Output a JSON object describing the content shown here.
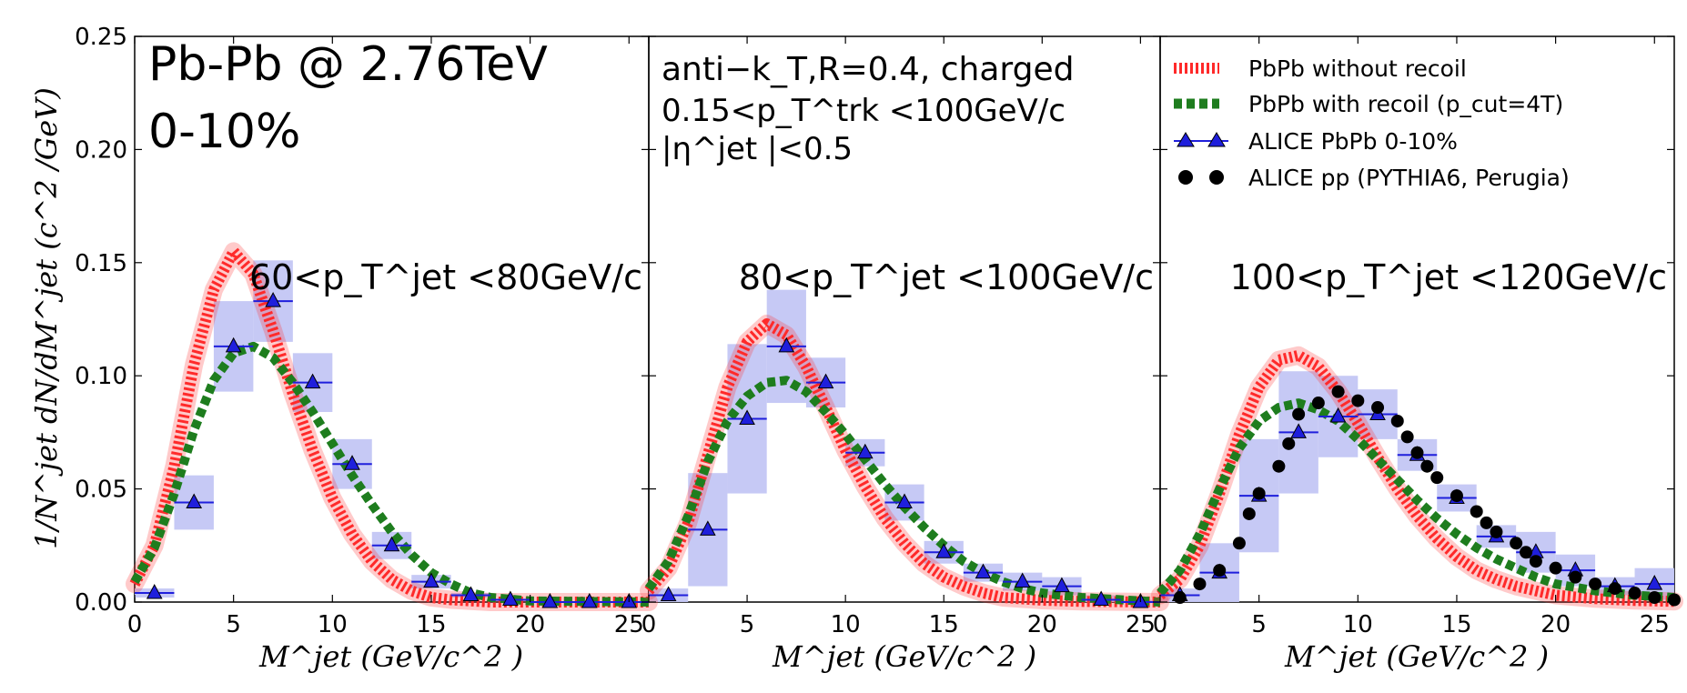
{
  "chart_data": {
    "type": "line",
    "ylabel": "1/N^jet dN/dM^jet (c^2 /GeV)",
    "ylim": [
      0,
      0.25
    ],
    "yticks": [
      "0.00",
      "0.05",
      "0.10",
      "0.15",
      "0.20",
      "0.25"
    ],
    "xlim": [
      0,
      26
    ],
    "xticks": [
      "0",
      "5",
      "10",
      "15",
      "20",
      "25"
    ],
    "xlabel": "M^jet (GeV/c^2 )",
    "system_title": "Pb-Pb @ 2.76TeV",
    "centrality": "0-10%",
    "annotations": {
      "jet_def": "anti−k_T,R=0.4, charged",
      "track_cut": "0.15<p_T^trk <100GeV/c",
      "eta_cut": "|η^jet |<0.5"
    },
    "legend": [
      {
        "key": "red",
        "label": "PbPb without recoil"
      },
      {
        "key": "green",
        "label": "PbPb with recoil (p_cut=4T)"
      },
      {
        "key": "alice",
        "label": "ALICE PbPb 0-10%"
      },
      {
        "key": "pp",
        "label": "ALICE pp (PYTHIA6, Perugia)"
      }
    ],
    "colors": {
      "red": "#ff2a2a",
      "green": "#1e7d1e",
      "alice": "#1f1fdc",
      "band": "#c3c6f4",
      "pp": "#000000"
    },
    "panels": [
      {
        "label": "60<p_T^jet <80GeV/c",
        "red": [
          [
            0,
            0.008
          ],
          [
            1,
            0.025
          ],
          [
            2,
            0.06
          ],
          [
            3,
            0.105
          ],
          [
            4,
            0.138
          ],
          [
            5,
            0.155
          ],
          [
            6,
            0.145
          ],
          [
            7,
            0.12
          ],
          [
            8,
            0.092
          ],
          [
            9,
            0.067
          ],
          [
            10,
            0.046
          ],
          [
            11,
            0.03
          ],
          [
            12,
            0.018
          ],
          [
            13,
            0.01
          ],
          [
            14,
            0.005
          ],
          [
            15,
            0.002
          ],
          [
            16,
            0.001
          ],
          [
            18,
            0.0
          ],
          [
            26,
            0.0
          ]
        ],
        "green": [
          [
            0,
            0.009
          ],
          [
            1,
            0.024
          ],
          [
            2,
            0.048
          ],
          [
            3,
            0.076
          ],
          [
            4,
            0.098
          ],
          [
            5,
            0.11
          ],
          [
            6,
            0.113
          ],
          [
            7,
            0.108
          ],
          [
            8,
            0.097
          ],
          [
            9,
            0.084
          ],
          [
            10,
            0.07
          ],
          [
            11,
            0.056
          ],
          [
            12,
            0.043
          ],
          [
            13,
            0.031
          ],
          [
            14,
            0.021
          ],
          [
            15,
            0.013
          ],
          [
            16,
            0.008
          ],
          [
            17,
            0.004
          ],
          [
            18,
            0.002
          ],
          [
            20,
            0.0005
          ],
          [
            26,
            0.0
          ]
        ],
        "alice": [
          {
            "x": 1,
            "y": 0.004,
            "xerr": 1,
            "sys": 0.002
          },
          {
            "x": 3,
            "y": 0.044,
            "xerr": 1,
            "sys": 0.012
          },
          {
            "x": 5,
            "y": 0.113,
            "xerr": 1,
            "sys": 0.02
          },
          {
            "x": 7,
            "y": 0.133,
            "xerr": 1,
            "sys": 0.018
          },
          {
            "x": 9,
            "y": 0.097,
            "xerr": 1,
            "sys": 0.013
          },
          {
            "x": 11,
            "y": 0.061,
            "xerr": 1,
            "sys": 0.011
          },
          {
            "x": 13,
            "y": 0.025,
            "xerr": 1,
            "sys": 0.006
          },
          {
            "x": 15,
            "y": 0.009,
            "xerr": 1,
            "sys": 0.003
          },
          {
            "x": 17,
            "y": 0.003,
            "xerr": 1,
            "sys": 0.001
          },
          {
            "x": 19,
            "y": 0.001,
            "xerr": 1,
            "sys": 0.0005
          },
          {
            "x": 21,
            "y": 0.0,
            "xerr": 1,
            "sys": 0.0003
          },
          {
            "x": 23,
            "y": 0.0,
            "xerr": 1,
            "sys": 0.0002
          },
          {
            "x": 25,
            "y": 0.0,
            "xerr": 1,
            "sys": 0.0002
          }
        ],
        "pp": []
      },
      {
        "label": "80<p_T^jet <100GeV/c",
        "red": [
          [
            0,
            0.005
          ],
          [
            1,
            0.015
          ],
          [
            2,
            0.035
          ],
          [
            3,
            0.065
          ],
          [
            4,
            0.095
          ],
          [
            5,
            0.115
          ],
          [
            6,
            0.123
          ],
          [
            7,
            0.118
          ],
          [
            8,
            0.104
          ],
          [
            9,
            0.086
          ],
          [
            10,
            0.067
          ],
          [
            11,
            0.051
          ],
          [
            12,
            0.037
          ],
          [
            13,
            0.026
          ],
          [
            14,
            0.017
          ],
          [
            15,
            0.011
          ],
          [
            16,
            0.007
          ],
          [
            17,
            0.004
          ],
          [
            18,
            0.002
          ],
          [
            20,
            0.0008
          ],
          [
            22,
            0.0003
          ],
          [
            26,
            0.0
          ]
        ],
        "green": [
          [
            0,
            0.006
          ],
          [
            1,
            0.018
          ],
          [
            2,
            0.038
          ],
          [
            3,
            0.062
          ],
          [
            4,
            0.08
          ],
          [
            5,
            0.091
          ],
          [
            6,
            0.097
          ],
          [
            7,
            0.098
          ],
          [
            8,
            0.093
          ],
          [
            9,
            0.084
          ],
          [
            10,
            0.074
          ],
          [
            11,
            0.063
          ],
          [
            12,
            0.052
          ],
          [
            13,
            0.042
          ],
          [
            14,
            0.033
          ],
          [
            15,
            0.025
          ],
          [
            16,
            0.018
          ],
          [
            17,
            0.013
          ],
          [
            18,
            0.009
          ],
          [
            19,
            0.006
          ],
          [
            20,
            0.004
          ],
          [
            22,
            0.002
          ],
          [
            24,
            0.001
          ],
          [
            26,
            0.0
          ]
        ],
        "alice": [
          {
            "x": 1,
            "y": 0.003,
            "xerr": 1,
            "sys": 0.003
          },
          {
            "x": 3,
            "y": 0.032,
            "xerr": 1,
            "sys": 0.025
          },
          {
            "x": 5,
            "y": 0.081,
            "xerr": 1,
            "sys": 0.033
          },
          {
            "x": 7,
            "y": 0.113,
            "xerr": 1,
            "sys": 0.025
          },
          {
            "x": 9,
            "y": 0.097,
            "xerr": 1,
            "sys": 0.011
          },
          {
            "x": 11,
            "y": 0.066,
            "xerr": 1,
            "sys": 0.006
          },
          {
            "x": 13,
            "y": 0.044,
            "xerr": 1,
            "sys": 0.008
          },
          {
            "x": 15,
            "y": 0.022,
            "xerr": 1,
            "sys": 0.005
          },
          {
            "x": 17,
            "y": 0.013,
            "xerr": 1,
            "sys": 0.004
          },
          {
            "x": 19,
            "y": 0.009,
            "xerr": 1,
            "sys": 0.004
          },
          {
            "x": 21,
            "y": 0.007,
            "xerr": 1,
            "sys": 0.004
          },
          {
            "x": 23,
            "y": 0.001,
            "xerr": 1,
            "sys": 0.002
          },
          {
            "x": 25,
            "y": 0.0,
            "xerr": 1,
            "sys": 0.001
          }
        ],
        "pp": []
      },
      {
        "label": "100<p_T^jet <120GeV/c",
        "red": [
          [
            0,
            0.003
          ],
          [
            1,
            0.01
          ],
          [
            2,
            0.025
          ],
          [
            3,
            0.048
          ],
          [
            4,
            0.074
          ],
          [
            5,
            0.095
          ],
          [
            6,
            0.107
          ],
          [
            7,
            0.109
          ],
          [
            8,
            0.104
          ],
          [
            9,
            0.093
          ],
          [
            10,
            0.079
          ],
          [
            11,
            0.064
          ],
          [
            12,
            0.05
          ],
          [
            13,
            0.038
          ],
          [
            14,
            0.028
          ],
          [
            15,
            0.02
          ],
          [
            16,
            0.014
          ],
          [
            17,
            0.01
          ],
          [
            18,
            0.007
          ],
          [
            19,
            0.005
          ],
          [
            20,
            0.003
          ],
          [
            22,
            0.0015
          ],
          [
            24,
            0.0007
          ],
          [
            26,
            0.0003
          ]
        ],
        "green": [
          [
            0,
            0.004
          ],
          [
            1,
            0.014
          ],
          [
            2,
            0.03
          ],
          [
            3,
            0.05
          ],
          [
            4,
            0.068
          ],
          [
            5,
            0.08
          ],
          [
            6,
            0.086
          ],
          [
            7,
            0.088
          ],
          [
            8,
            0.085
          ],
          [
            9,
            0.08
          ],
          [
            10,
            0.072
          ],
          [
            11,
            0.063
          ],
          [
            12,
            0.054
          ],
          [
            13,
            0.045
          ],
          [
            14,
            0.037
          ],
          [
            15,
            0.03
          ],
          [
            16,
            0.024
          ],
          [
            17,
            0.019
          ],
          [
            18,
            0.015
          ],
          [
            19,
            0.011
          ],
          [
            20,
            0.008
          ],
          [
            22,
            0.005
          ],
          [
            24,
            0.003
          ],
          [
            26,
            0.002
          ]
        ],
        "alice": [
          {
            "x": 1,
            "y": 0.003,
            "xerr": 1,
            "sys": 0.003
          },
          {
            "x": 3,
            "y": 0.013,
            "xerr": 1,
            "sys": 0.013
          },
          {
            "x": 5,
            "y": 0.047,
            "xerr": 1,
            "sys": 0.025
          },
          {
            "x": 7,
            "y": 0.075,
            "xerr": 1,
            "sys": 0.027
          },
          {
            "x": 9,
            "y": 0.082,
            "xerr": 1,
            "sys": 0.018
          },
          {
            "x": 11,
            "y": 0.083,
            "xerr": 1,
            "sys": 0.011
          },
          {
            "x": 13,
            "y": 0.065,
            "xerr": 1,
            "sys": 0.007
          },
          {
            "x": 15,
            "y": 0.046,
            "xerr": 1,
            "sys": 0.006
          },
          {
            "x": 17,
            "y": 0.029,
            "xerr": 1,
            "sys": 0.005
          },
          {
            "x": 19,
            "y": 0.022,
            "xerr": 1,
            "sys": 0.009
          },
          {
            "x": 21,
            "y": 0.014,
            "xerr": 1,
            "sys": 0.007
          },
          {
            "x": 23,
            "y": 0.007,
            "xerr": 1,
            "sys": 0.004
          },
          {
            "x": 25,
            "y": 0.008,
            "xerr": 1,
            "sys": 0.007
          }
        ],
        "pp": [
          [
            1,
            0.002
          ],
          [
            2,
            0.008
          ],
          [
            3,
            0.014
          ],
          [
            4,
            0.026
          ],
          [
            4.5,
            0.039
          ],
          [
            5,
            0.048
          ],
          [
            6,
            0.06
          ],
          [
            6.5,
            0.07
          ],
          [
            7,
            0.083
          ],
          [
            8,
            0.088
          ],
          [
            9,
            0.093
          ],
          [
            10,
            0.089
          ],
          [
            11,
            0.086
          ],
          [
            12,
            0.08
          ],
          [
            12.5,
            0.073
          ],
          [
            13,
            0.066
          ],
          [
            13.5,
            0.06
          ],
          [
            14,
            0.055
          ],
          [
            15,
            0.047
          ],
          [
            16,
            0.04
          ],
          [
            16.5,
            0.035
          ],
          [
            17,
            0.031
          ],
          [
            18,
            0.026
          ],
          [
            18.5,
            0.022
          ],
          [
            19,
            0.018
          ],
          [
            20,
            0.015
          ],
          [
            21,
            0.011
          ],
          [
            22,
            0.008
          ],
          [
            23,
            0.006
          ],
          [
            24,
            0.004
          ],
          [
            25,
            0.002
          ],
          [
            26,
            0.001
          ]
        ]
      }
    ]
  }
}
